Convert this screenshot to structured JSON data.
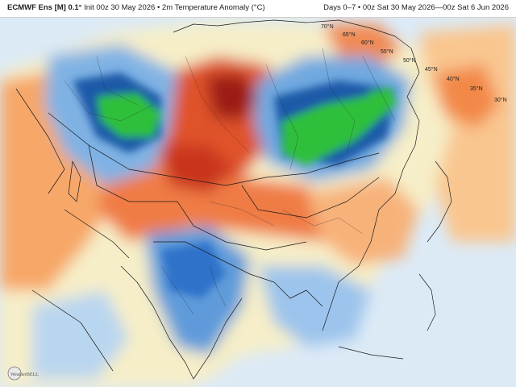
{
  "header": {
    "model": "ECMWF Ens [M] 0.1°",
    "init": "Init 00z 30 May 2026 • 2m Temperature Anomaly (°C)",
    "valid": "Days 0–7 • 00z Sat 30 May 2026—00z Sat 6 Jun 2026"
  },
  "lat_labels": [
    "70°N",
    "65°N",
    "60°N",
    "55°N",
    "50°N",
    "45°N",
    "40°N",
    "35°N",
    "30°N"
  ],
  "logo": {
    "text": "WeatherBELL"
  },
  "colors": {
    "ocean": "#dceaf6",
    "land_neutral": "#f6eec8",
    "warm_light": "#f9c68f",
    "warm": "#f3894a",
    "hot": "#d93a1c",
    "very_hot": "#8e1a12",
    "cool_light": "#b9d6f0",
    "cool": "#6fa9e0",
    "cold": "#2d72c9",
    "very_cold": "#1f5aa8",
    "green_extreme": "#2fbf3a"
  }
}
